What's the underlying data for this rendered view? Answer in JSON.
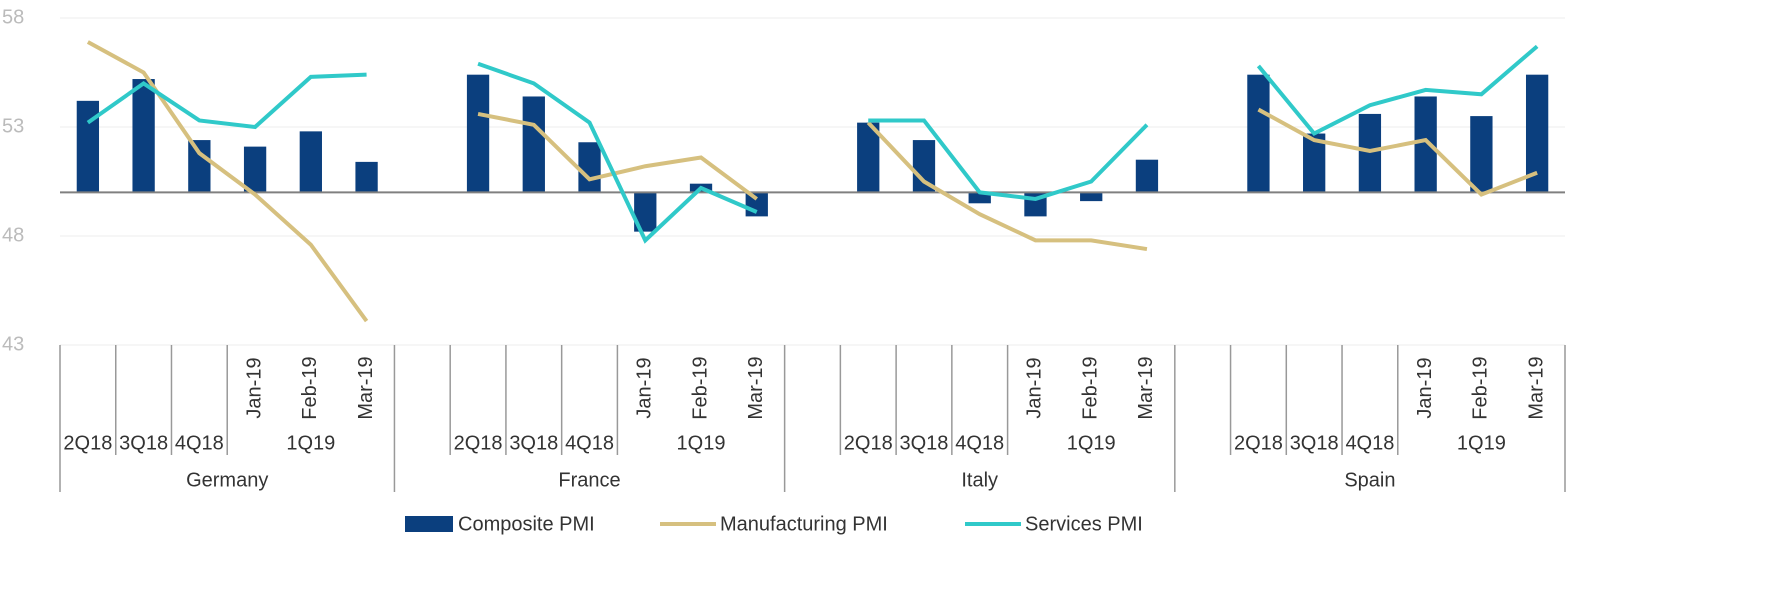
{
  "chart_data": {
    "type": "combo",
    "categories": [
      "2Q18",
      "3Q18",
      "4Q18",
      "Jan-19",
      "Feb-19",
      "Mar-19",
      null,
      "2Q18",
      "3Q18",
      "4Q18",
      "Jan-19",
      "Feb-19",
      "Mar-19",
      null,
      "2Q18",
      "3Q18",
      "4Q18",
      "Jan-19",
      "Feb-19",
      "Mar-19",
      null,
      "2Q18",
      "3Q18",
      "4Q18",
      "Jan-19",
      "Feb-19",
      "Mar-19"
    ],
    "subgroups": [
      "1Q19",
      "1Q19",
      "1Q19",
      "1Q19"
    ],
    "groups": [
      "Germany",
      "France",
      "Italy",
      "Spain"
    ],
    "series": [
      {
        "name": "Composite PMI",
        "type": "bar",
        "color": "#0b3f7e",
        "values": [
          54.2,
          55.2,
          52.4,
          52.1,
          52.8,
          51.4,
          null,
          55.4,
          54.4,
          52.3,
          48.2,
          50.4,
          48.9,
          null,
          53.2,
          52.4,
          49.5,
          48.9,
          49.6,
          51.5,
          null,
          55.4,
          52.7,
          53.6,
          54.4,
          53.5,
          55.4
        ]
      },
      {
        "name": "Manufacturing PMI",
        "type": "line",
        "color": "#d6c07f",
        "values": [
          56.9,
          55.5,
          51.8,
          49.9,
          47.6,
          44.1,
          null,
          53.6,
          53.1,
          50.6,
          51.2,
          51.6,
          49.7,
          null,
          53.2,
          50.5,
          49.0,
          47.8,
          47.8,
          47.4,
          null,
          53.8,
          52.4,
          51.9,
          52.4,
          49.9,
          50.9
        ]
      },
      {
        "name": "Services PMI",
        "type": "line",
        "color": "#30c9c9",
        "values": [
          53.2,
          55.0,
          53.3,
          53.0,
          55.3,
          55.4,
          null,
          55.9,
          55.0,
          53.2,
          47.8,
          50.2,
          49.1,
          null,
          53.3,
          53.3,
          50.0,
          49.7,
          50.5,
          53.1,
          null,
          55.8,
          52.7,
          54.0,
          54.7,
          54.5,
          56.7
        ]
      }
    ],
    "ylim": [
      43,
      58
    ],
    "yticks": [
      43,
      48,
      53,
      58
    ],
    "baseline": 50,
    "grid": true,
    "legend": "bottom"
  }
}
